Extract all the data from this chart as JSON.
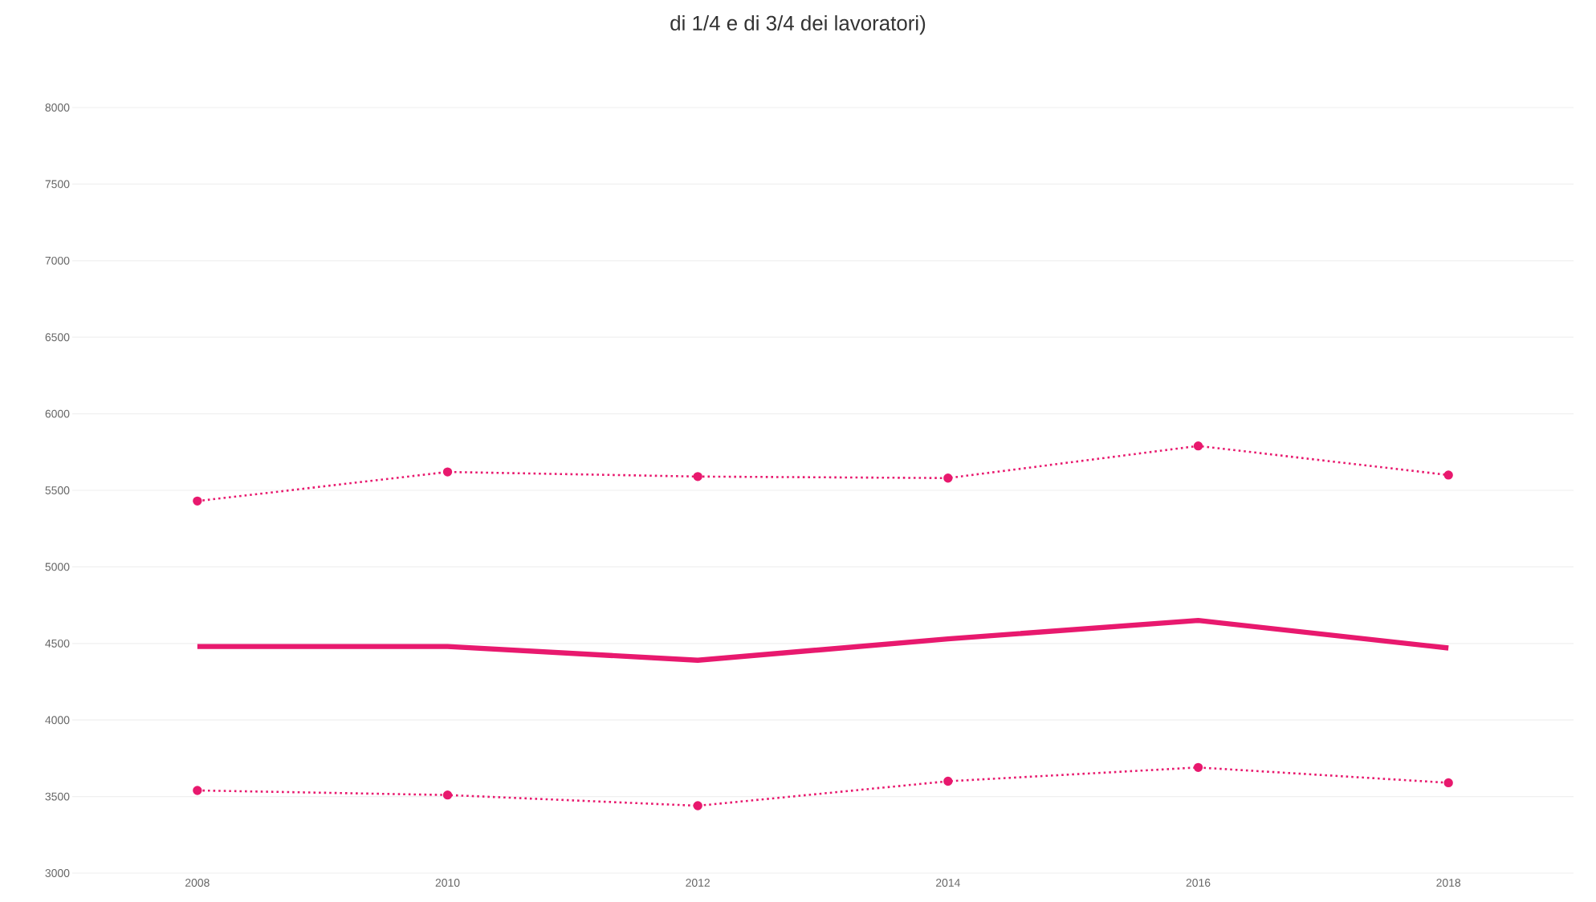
{
  "chart_data": {
    "type": "line",
    "title": "di 1/4 e di 3/4 dei lavoratori)",
    "x": [
      2008,
      2010,
      2012,
      2014,
      2016,
      2018
    ],
    "series": [
      {
        "color": "#e8196e",
        "line_style": "dotted",
        "marker": "circle",
        "values": [
          5430,
          5620,
          5590,
          5580,
          5790,
          5600
        ]
      },
      {
        "color": "#e8196e",
        "line_style": "solid",
        "marker": "none",
        "values": [
          4480,
          4480,
          4390,
          4530,
          4650,
          4470
        ]
      },
      {
        "color": "#e8196e",
        "line_style": "dotted",
        "marker": "circle",
        "values": [
          3540,
          3510,
          3440,
          3600,
          3690,
          3590
        ]
      }
    ],
    "xlim": [
      2007,
      2019
    ],
    "xticks": [
      2008,
      2010,
      2012,
      2014,
      2016,
      2018
    ],
    "ylim": [
      3000,
      8000
    ],
    "yticks": [
      3000,
      3500,
      4000,
      4500,
      5000,
      5500,
      6000,
      6500,
      7000,
      7500,
      8000
    ],
    "grid": "y"
  }
}
